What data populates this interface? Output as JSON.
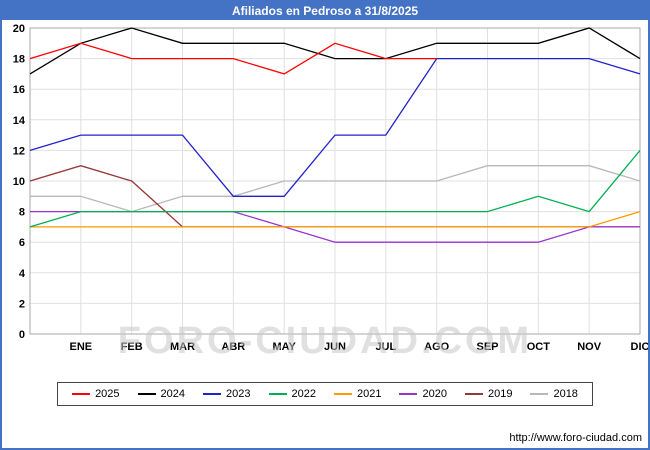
{
  "title": "Afiliados en Pedroso a 31/8/2025",
  "watermark": "FORO-CIUDAD.COM",
  "footer": {
    "url": "http://www.foro-ciudad.com"
  },
  "colors": {
    "header_bg": "#4472c4",
    "page_border": "#4472c4",
    "grid": "#e0e0e0",
    "axis": "#aaaaaa",
    "tick_text": "#000000",
    "watermark": "#c8c8c8"
  },
  "chart_data": {
    "type": "line",
    "title": "Afiliados en Pedroso a 31/8/2025",
    "xlabel": "",
    "ylabel": "",
    "ylim": [
      0,
      20
    ],
    "y_tick_step": 2,
    "grid": true,
    "legend_position": "bottom",
    "x_labels": [
      "",
      "ENE",
      "FEB",
      "MAR",
      "ABR",
      "MAY",
      "JUN",
      "JUL",
      "AGO",
      "SEP",
      "OCT",
      "NOV",
      "DIC"
    ],
    "series": [
      {
        "name": "2025",
        "color": "#ff0000",
        "values": [
          18,
          19,
          18,
          18,
          18,
          17,
          19,
          18,
          18,
          null,
          null,
          null,
          null
        ]
      },
      {
        "name": "2024",
        "color": "#000000",
        "values": [
          17,
          19,
          20,
          19,
          19,
          19,
          18,
          18,
          19,
          19,
          19,
          20,
          18
        ]
      },
      {
        "name": "2023",
        "color": "#2222cc",
        "values": [
          12,
          13,
          13,
          13,
          9,
          9,
          13,
          13,
          18,
          18,
          18,
          18,
          17
        ]
      },
      {
        "name": "2022",
        "color": "#00b050",
        "values": [
          7,
          8,
          8,
          8,
          8,
          8,
          8,
          8,
          8,
          8,
          9,
          8,
          12
        ]
      },
      {
        "name": "2021",
        "color": "#ff9900",
        "values": [
          7,
          7,
          7,
          7,
          7,
          7,
          7,
          7,
          7,
          7,
          7,
          7,
          8
        ]
      },
      {
        "name": "2020",
        "color": "#9933cc",
        "values": [
          8,
          8,
          8,
          8,
          8,
          7,
          6,
          6,
          6,
          6,
          6,
          7,
          7
        ]
      },
      {
        "name": "2019",
        "color": "#953735",
        "values": [
          10,
          11,
          10,
          7,
          7,
          7,
          7,
          7,
          7,
          7,
          7,
          7,
          7
        ]
      },
      {
        "name": "2018",
        "color": "#b8b8b8",
        "values": [
          9,
          9,
          8,
          9,
          9,
          10,
          10,
          10,
          10,
          11,
          11,
          11,
          10
        ]
      }
    ]
  }
}
